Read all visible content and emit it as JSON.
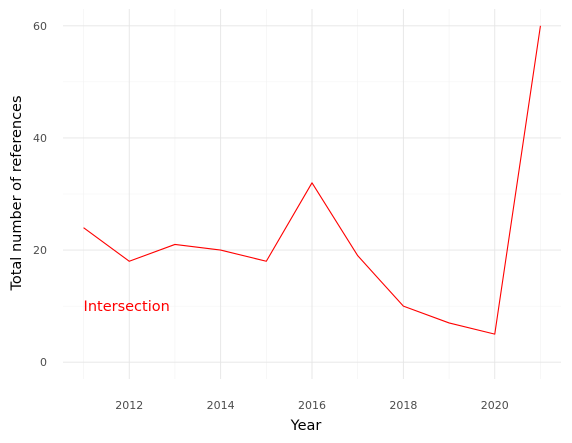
{
  "chart_data": {
    "type": "line",
    "xlabel": "Year",
    "ylabel": "Total number of references",
    "xlim": [
      2010.55,
      2021.45
    ],
    "ylim": [
      -3.0,
      63.0
    ],
    "x_ticks": [
      2012,
      2014,
      2016,
      2018,
      2020
    ],
    "y_ticks": [
      0,
      20,
      40,
      60
    ],
    "grid": true,
    "series": [
      {
        "color": "#ff0000",
        "x": [
          2011,
          2012,
          2013,
          2014,
          2015,
          2016,
          2017,
          2018,
          2019,
          2020,
          2021
        ],
        "y": [
          24,
          18,
          21,
          20,
          18,
          32,
          19,
          10,
          7,
          5,
          60
        ]
      }
    ],
    "annotations": [
      {
        "text": "Intersection",
        "x": 2011,
        "y": 10,
        "color": "#ff0000"
      }
    ]
  }
}
